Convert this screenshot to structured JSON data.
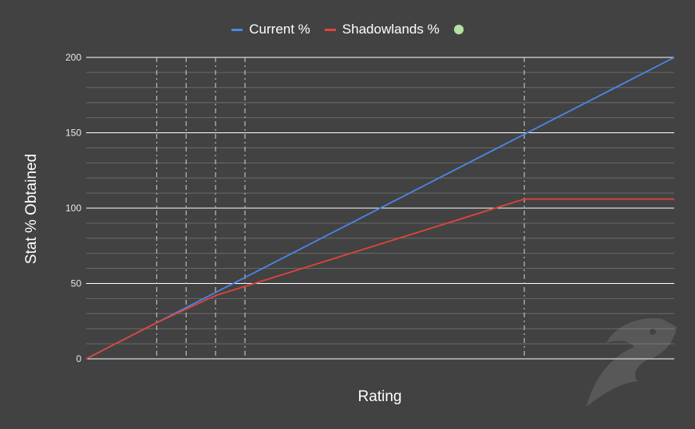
{
  "chart_data": {
    "type": "line",
    "xlabel": "Rating",
    "ylabel": "Stat % Obtained",
    "ylim": [
      0,
      200
    ],
    "yticks": [
      0,
      50,
      100,
      150,
      200
    ],
    "y_minor_step": 10,
    "xlim": [
      0,
      1000
    ],
    "legend_position": "top",
    "series": [
      {
        "name": "Current %",
        "color": "#4a86e8",
        "x": [
          0,
          1000
        ],
        "y": [
          0,
          200
        ]
      },
      {
        "name": "Shadowlands %",
        "color": "#e0443a",
        "x": [
          0,
          120,
          220,
          745,
          1000
        ],
        "y": [
          0,
          24,
          42,
          106,
          106
        ]
      }
    ],
    "extra_legend_marker": {
      "color": "#b7e1a1"
    },
    "reference_lines_x": [
      120,
      170,
      220,
      270,
      745
    ],
    "grid": true
  }
}
